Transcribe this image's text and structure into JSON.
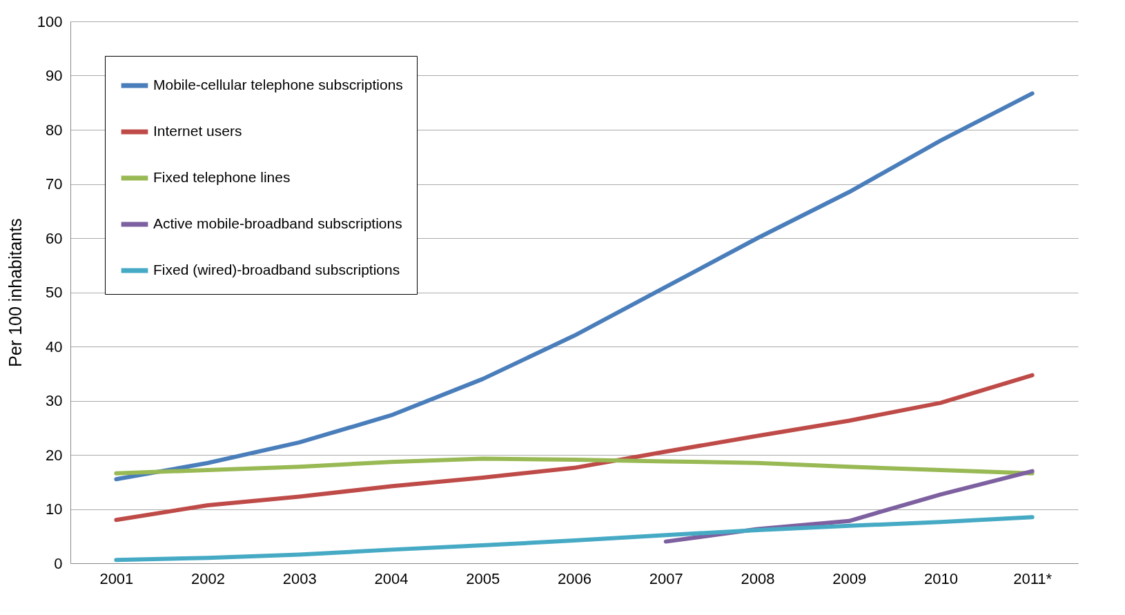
{
  "chart_data": {
    "type": "line",
    "ylabel": "Per 100 inhabitants",
    "categories": [
      "2001",
      "2002",
      "2003",
      "2004",
      "2005",
      "2006",
      "2007",
      "2008",
      "2009",
      "2010",
      "2011*"
    ],
    "series": [
      {
        "name": "Mobile-cellular telephone subscriptions",
        "color": "#4a7ebb",
        "values": [
          15.5,
          18.5,
          22.3,
          27.3,
          34,
          42,
          51,
          60,
          68.5,
          78,
          86.7
        ]
      },
      {
        "name": "Internet users",
        "color": "#be4b48",
        "values": [
          8,
          10.7,
          12.3,
          14.2,
          15.8,
          17.6,
          20.6,
          23.5,
          26.3,
          29.6,
          34.7
        ]
      },
      {
        "name": "Fixed telephone lines",
        "color": "#98b954",
        "values": [
          16.6,
          17.2,
          17.8,
          18.7,
          19.3,
          19.1,
          18.8,
          18.5,
          17.8,
          17.2,
          16.6
        ]
      },
      {
        "name": "Active mobile-broadband subscriptions",
        "color": "#7d60a0",
        "values": [
          null,
          null,
          null,
          null,
          null,
          null,
          4.0,
          6.3,
          7.8,
          12.7,
          17.0
        ]
      },
      {
        "name": "Fixed (wired)-broadband subscriptions",
        "color": "#46aac5",
        "values": [
          0.6,
          1.0,
          1.6,
          2.5,
          3.3,
          4.2,
          5.2,
          6.1,
          6.9,
          7.6,
          8.5
        ]
      }
    ],
    "ylim": [
      0,
      100
    ],
    "yticks": [
      0,
      10,
      20,
      30,
      40,
      50,
      60,
      70,
      80,
      90,
      100
    ],
    "grid": "y",
    "legend": "top left",
    "marker": "none",
    "line_style": "solid"
  }
}
